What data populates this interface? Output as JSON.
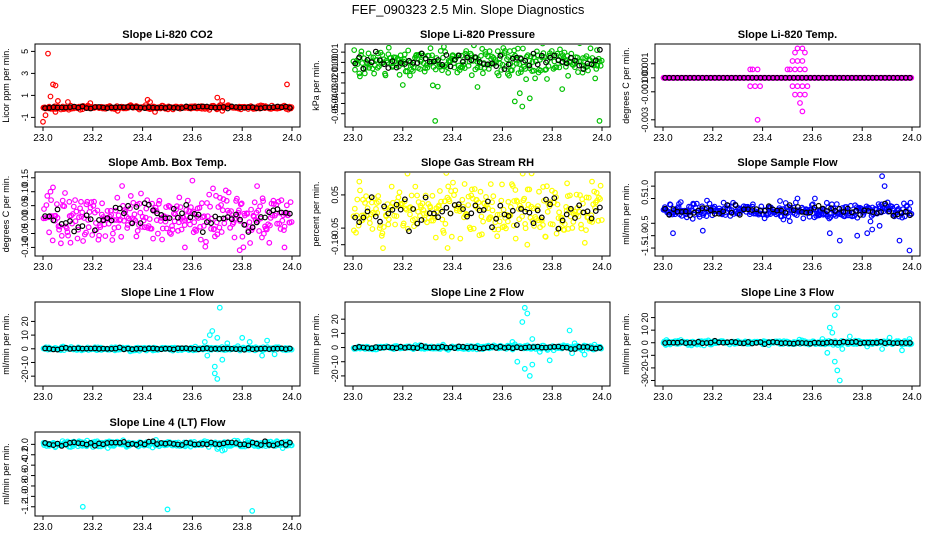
{
  "title": "FEF_090323  2.5 Min. Slope Diagnostics",
  "chart_data": [
    {
      "type": "scatter",
      "title": "Slope Li-820 CO2",
      "ylabel": "Licor ppm per min.",
      "color": "#ff0000",
      "xlim": [
        23.0,
        24.0
      ],
      "xticks": [
        "23.0",
        "23.2",
        "23.4",
        "23.6",
        "23.8",
        "24.0"
      ],
      "ylim": [
        -1.6,
        5.4
      ],
      "yticks": [
        {
          "v": -1,
          "label": "-1"
        },
        {
          "v": 1,
          "label": "1"
        },
        {
          "v": 3,
          "label": "3"
        },
        {
          "v": 5,
          "label": "5"
        }
      ],
      "core": {
        "center": -0.1,
        "sd": 0.08,
        "black_sd": 0.05
      },
      "outliers": [
        [
          23.02,
          4.8
        ],
        [
          23.04,
          2.0
        ],
        [
          23.05,
          1.9
        ],
        [
          23.03,
          0.9
        ],
        [
          23.06,
          0.5
        ],
        [
          23.0,
          -1.4
        ],
        [
          23.01,
          -0.8
        ],
        [
          23.05,
          -0.5
        ],
        [
          23.1,
          0.4
        ],
        [
          23.19,
          0.3
        ],
        [
          23.42,
          0.6
        ],
        [
          23.43,
          0.4
        ],
        [
          23.7,
          0.8
        ],
        [
          23.72,
          0.5
        ],
        [
          23.98,
          2.0
        ],
        [
          23.45,
          -0.5
        ],
        [
          23.72,
          -0.4
        ],
        [
          23.15,
          -0.3
        ],
        [
          23.3,
          -0.4
        ]
      ]
    },
    {
      "type": "scatter",
      "title": "Slope Li-820 Pressure",
      "ylabel": "kPa per min.",
      "color": "#00c000",
      "xlim": [
        23.0,
        24.0
      ],
      "xticks": [
        "23.0",
        "23.2",
        "23.4",
        "23.6",
        "23.8",
        "24.0"
      ],
      "ylim": [
        -0.06,
        0.015
      ],
      "yticks": [
        {
          "v": 0.01,
          "label": "0.01"
        },
        {
          "v": 0.0,
          "label": "0.00"
        },
        {
          "v": -0.01,
          "label": "-0.01"
        },
        {
          "v": -0.02,
          "label": "-0.02"
        },
        {
          "v": -0.03,
          "label": "-0.03"
        },
        {
          "v": -0.04,
          "label": "-0.04"
        },
        {
          "v": -0.05,
          "label": "-0.05"
        }
      ],
      "core": {
        "center": 0.001,
        "sd": 0.007,
        "black_sd": 0.004
      },
      "outliers": [
        [
          23.33,
          -0.057
        ],
        [
          23.99,
          -0.057
        ],
        [
          23.65,
          -0.038
        ],
        [
          23.68,
          -0.043
        ],
        [
          23.71,
          -0.035
        ],
        [
          23.67,
          -0.03
        ],
        [
          23.98,
          0.012
        ],
        [
          23.63,
          0.011
        ],
        [
          23.2,
          -0.022
        ],
        [
          23.5,
          -0.024
        ],
        [
          23.84,
          -0.026
        ]
      ]
    },
    {
      "type": "scatter",
      "title": "Slope Li-820 Temp.",
      "ylabel": "degrees C per min.",
      "color": "#ff00ff",
      "xlim": [
        23.0,
        24.0
      ],
      "xticks": [
        "23.0",
        "23.2",
        "23.4",
        "23.6",
        "23.8",
        "24.0"
      ],
      "ylim": [
        -0.0033,
        0.0022
      ],
      "yticks": [
        {
          "v": 0.001,
          "label": "0.001"
        },
        {
          "v": 0.0,
          "label": "0.000"
        },
        {
          "v": -0.001,
          "label": "-0.001"
        },
        {
          "v": -0.003,
          "label": "-0.003"
        }
      ],
      "core": {
        "center": 0.0,
        "sd": 0.0,
        "black_sd": 0.0
      },
      "outliers": [
        [
          23.35,
          0.0006
        ],
        [
          23.36,
          0.0006
        ],
        [
          23.38,
          0.0006
        ],
        [
          23.5,
          0.0006
        ],
        [
          23.51,
          0.0006
        ],
        [
          23.53,
          0.0006
        ],
        [
          23.55,
          0.0006
        ],
        [
          23.57,
          0.0006
        ],
        [
          23.52,
          0.0012
        ],
        [
          23.54,
          0.0012
        ],
        [
          23.56,
          0.0012
        ],
        [
          23.53,
          0.0018
        ],
        [
          23.57,
          0.0018
        ],
        [
          23.54,
          0.0021
        ],
        [
          23.56,
          0.0021
        ],
        [
          23.35,
          -0.0006
        ],
        [
          23.37,
          -0.0006
        ],
        [
          23.39,
          -0.0006
        ],
        [
          23.52,
          -0.0006
        ],
        [
          23.54,
          -0.0006
        ],
        [
          23.56,
          -0.0006
        ],
        [
          23.58,
          -0.0006
        ],
        [
          23.53,
          -0.0012
        ],
        [
          23.55,
          -0.0012
        ],
        [
          23.57,
          -0.0012
        ],
        [
          23.55,
          -0.0018
        ],
        [
          23.56,
          -0.0024
        ],
        [
          23.38,
          -0.003
        ]
      ]
    },
    {
      "type": "scatter",
      "title": "Slope Amb. Box Temp.",
      "ylabel": "degrees C per min.",
      "color": "#ff00ff",
      "xlim": [
        23.0,
        24.0
      ],
      "xticks": [
        "23.0",
        "23.2",
        "23.4",
        "23.6",
        "23.8",
        "24.0"
      ],
      "ylim": [
        -0.12,
        0.16
      ],
      "yticks": [
        {
          "v": 0.15,
          "label": "0.15"
        },
        {
          "v": 0.1,
          "label": "0.10"
        },
        {
          "v": 0.05,
          "label": "0.05"
        },
        {
          "v": 0.0,
          "label": "0.00"
        },
        {
          "v": -0.05,
          "label": "-0.05"
        },
        {
          "v": -0.1,
          "label": "-0.10"
        }
      ],
      "core": {
        "center": 0.01,
        "sd": 0.045,
        "black_sd": 0.025
      },
      "outliers": [
        [
          23.6,
          0.14
        ],
        [
          23.86,
          0.12
        ],
        [
          23.79,
          -0.11
        ],
        [
          23.97,
          -0.1
        ],
        [
          23.03,
          0.1
        ],
        [
          23.57,
          -0.1
        ]
      ]
    },
    {
      "type": "scatter",
      "title": "Slope Gas Stream RH",
      "ylabel": "percent per min.",
      "color": "#ffff00",
      "xlim": [
        23.0,
        24.0
      ],
      "xticks": [
        "23.0",
        "23.2",
        "23.4",
        "23.6",
        "23.8",
        "24.0"
      ],
      "ylim": [
        -0.125,
        0.11
      ],
      "yticks": [
        {
          "v": 0.05,
          "label": "0.05"
        },
        {
          "v": -0.05,
          "label": "-0.05"
        },
        {
          "v": -0.1,
          "label": "-0.10"
        }
      ],
      "core": {
        "center": 0.0,
        "sd": 0.04,
        "black_sd": 0.025
      },
      "outliers": [
        [
          23.38,
          -0.11
        ],
        [
          23.7,
          -0.1
        ],
        [
          23.96,
          0.09
        ],
        [
          23.86,
          0.085
        ]
      ]
    },
    {
      "type": "scatter",
      "title": "Slope Sample Flow",
      "ylabel": "ml/min per min.",
      "color": "#0000ff",
      "xlim": [
        23.0,
        24.0
      ],
      "xticks": [
        "23.0",
        "23.2",
        "23.4",
        "23.6",
        "23.8",
        "24.0"
      ],
      "ylim": [
        -1.7,
        1.45
      ],
      "yticks": [
        {
          "v": 1.0,
          "label": "1.0"
        },
        {
          "v": 0.5,
          "label": "0.5"
        },
        {
          "v": -0.5,
          "label": "-0.5"
        },
        {
          "v": -1.0,
          "label": "-1.0"
        },
        {
          "v": -1.5,
          "label": "-1.5"
        }
      ],
      "core": {
        "center": 0.0,
        "sd": 0.15,
        "black_sd": 0.1
      },
      "outliers": [
        [
          23.88,
          1.4
        ],
        [
          23.89,
          1.0
        ],
        [
          23.82,
          -0.9
        ],
        [
          23.84,
          -0.75
        ],
        [
          23.87,
          -0.6
        ],
        [
          23.78,
          -1.0
        ],
        [
          23.71,
          -1.2
        ],
        [
          23.67,
          -0.9
        ],
        [
          23.04,
          -0.9
        ],
        [
          23.16,
          -0.8
        ],
        [
          23.95,
          -1.2
        ],
        [
          23.99,
          -1.6
        ],
        [
          23.47,
          0.4
        ],
        [
          23.61,
          0.5
        ],
        [
          23.54,
          0.5
        ]
      ]
    },
    {
      "type": "scatter",
      "title": "Slope Line 1 Flow",
      "ylabel": "ml/min per min.",
      "color": "#00ffff",
      "xlim": [
        23.0,
        24.0
      ],
      "xticks": [
        "23.0",
        "23.2",
        "23.4",
        "23.6",
        "23.8",
        "24.0"
      ],
      "ylim": [
        -25,
        32
      ],
      "yticks": [
        {
          "v": 20,
          "label": "20"
        },
        {
          "v": 10,
          "label": "10"
        },
        {
          "v": 0,
          "label": "0"
        },
        {
          "v": -10,
          "label": "-10"
        },
        {
          "v": -20,
          "label": "-20"
        }
      ],
      "core": {
        "center": 0.0,
        "sd": 0.6,
        "black_sd": 0.3
      },
      "outliers": [
        [
          23.71,
          30
        ],
        [
          23.7,
          -22
        ],
        [
          23.69,
          -18
        ],
        [
          23.68,
          13
        ],
        [
          23.67,
          10
        ],
        [
          23.7,
          8
        ],
        [
          23.66,
          -5
        ],
        [
          23.72,
          -8
        ],
        [
          23.69,
          -13
        ],
        [
          23.8,
          8
        ],
        [
          23.83,
          5
        ],
        [
          23.9,
          6
        ],
        [
          23.88,
          -5
        ],
        [
          23.93,
          -4
        ],
        [
          23.65,
          5
        ],
        [
          23.74,
          4
        ]
      ]
    },
    {
      "type": "scatter",
      "title": "Slope Line 2 Flow",
      "ylabel": "ml/min per min.",
      "color": "#00ffff",
      "xlim": [
        23.0,
        24.0
      ],
      "xticks": [
        "23.0",
        "23.2",
        "23.4",
        "23.6",
        "23.8",
        "24.0"
      ],
      "ylim": [
        -25,
        30
      ],
      "yticks": [
        {
          "v": 20,
          "label": "20"
        },
        {
          "v": 10,
          "label": "10"
        },
        {
          "v": 0,
          "label": "0"
        },
        {
          "v": -10,
          "label": "-10"
        },
        {
          "v": -20,
          "label": "-20"
        }
      ],
      "core": {
        "center": 0.0,
        "sd": 0.7,
        "black_sd": 0.4
      },
      "outliers": [
        [
          23.69,
          28
        ],
        [
          23.7,
          24
        ],
        [
          23.68,
          18
        ],
        [
          23.72,
          6
        ],
        [
          23.66,
          -10
        ],
        [
          23.69,
          -15
        ],
        [
          23.71,
          -20
        ],
        [
          23.72,
          -12
        ],
        [
          23.87,
          12
        ],
        [
          23.89,
          3
        ],
        [
          23.88,
          -4
        ],
        [
          23.93,
          -5
        ],
        [
          23.97,
          2
        ],
        [
          23.79,
          -9
        ],
        [
          23.64,
          4
        ],
        [
          23.75,
          -3
        ]
      ]
    },
    {
      "type": "scatter",
      "title": "Slope Line 3 Flow",
      "ylabel": "ml/min per min.",
      "color": "#00ffff",
      "xlim": [
        23.0,
        24.0
      ],
      "xticks": [
        "23.0",
        "23.2",
        "23.4",
        "23.6",
        "23.8",
        "24.0"
      ],
      "ylim": [
        -32,
        30
      ],
      "yticks": [
        {
          "v": 20,
          "label": "20"
        },
        {
          "v": 10,
          "label": "10"
        },
        {
          "v": 0,
          "label": "0"
        },
        {
          "v": -10,
          "label": "-10"
        },
        {
          "v": -20,
          "label": "-20"
        },
        {
          "v": -30,
          "label": "-30"
        }
      ],
      "core": {
        "center": 0.0,
        "sd": 0.8,
        "black_sd": 0.4
      },
      "outliers": [
        [
          23.7,
          28
        ],
        [
          23.69,
          22
        ],
        [
          23.67,
          12
        ],
        [
          23.68,
          8
        ],
        [
          23.66,
          -8
        ],
        [
          23.69,
          -15
        ],
        [
          23.7,
          -22
        ],
        [
          23.71,
          -30
        ],
        [
          23.72,
          -5
        ],
        [
          23.82,
          -3
        ],
        [
          23.88,
          -5
        ],
        [
          23.91,
          4
        ],
        [
          23.96,
          -6
        ],
        [
          23.99,
          3
        ],
        [
          23.64,
          3
        ],
        [
          23.75,
          5
        ]
      ]
    },
    {
      "type": "scatter",
      "title": "Slope Line 4 (LT) Flow",
      "ylabel": "ml/min per min.",
      "color": "#00ffff",
      "xlim": [
        23.0,
        24.0
      ],
      "xticks": [
        "23.0",
        "23.2",
        "23.4",
        "23.6",
        "23.8",
        "24.0"
      ],
      "ylim": [
        -1.32,
        0.18
      ],
      "yticks": [
        {
          "v": 0.0,
          "label": "0.0"
        },
        {
          "v": -0.2,
          "label": "-0.2"
        },
        {
          "v": -0.4,
          "label": "-0.4"
        },
        {
          "v": -0.6,
          "label": "-0.6"
        },
        {
          "v": -0.8,
          "label": "-0.8"
        },
        {
          "v": -1.0,
          "label": "-1.0"
        },
        {
          "v": -1.2,
          "label": "-1.2"
        }
      ],
      "core": {
        "center": 0.01,
        "sd": 0.03,
        "black_sd": 0.02
      },
      "outliers": [
        [
          23.16,
          -1.2
        ],
        [
          23.5,
          -1.25
        ],
        [
          23.84,
          -1.28
        ],
        [
          23.72,
          -0.12
        ],
        [
          23.73,
          -0.1
        ],
        [
          23.7,
          -0.09
        ]
      ]
    }
  ]
}
